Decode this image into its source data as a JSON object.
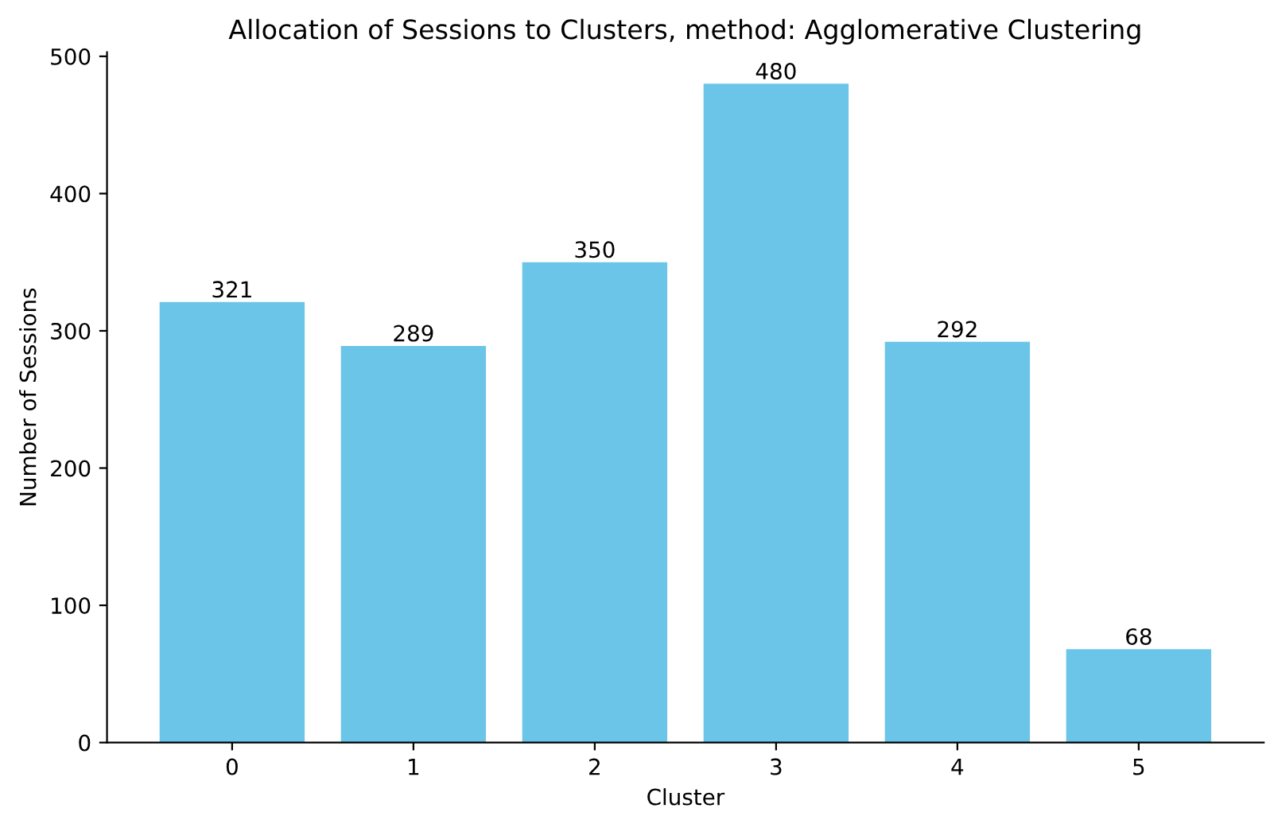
{
  "chart_data": {
    "type": "bar",
    "title": "Allocation of Sessions to Clusters, method: Agglomerative Clustering",
    "xlabel": "Cluster",
    "ylabel": "Number of Sessions",
    "categories": [
      "0",
      "1",
      "2",
      "3",
      "4",
      "5"
    ],
    "values": [
      321,
      289,
      350,
      480,
      292,
      68
    ],
    "color": "#6bc5e8",
    "ylim": [
      0,
      503
    ],
    "yticks": [
      0,
      100,
      200,
      300,
      400,
      500
    ],
    "data_labels": true,
    "grid": false
  }
}
